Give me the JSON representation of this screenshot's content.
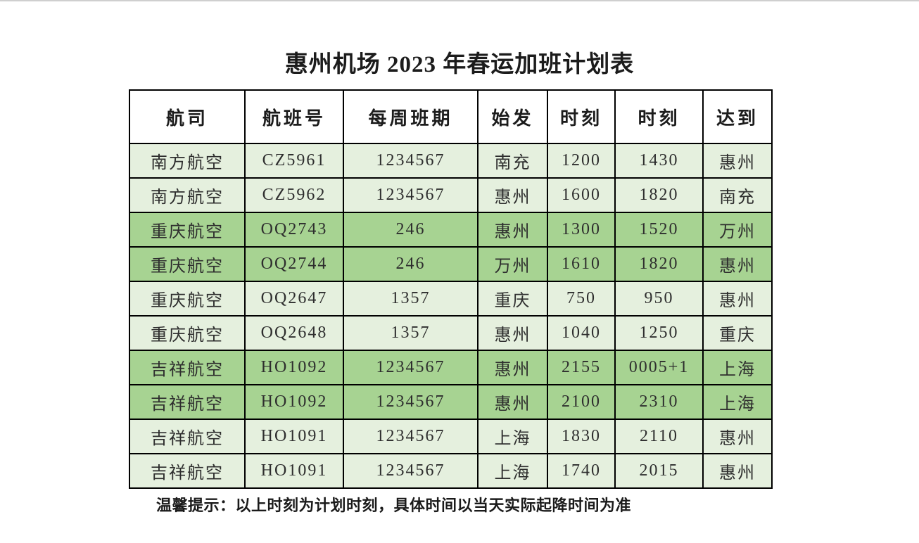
{
  "page": {
    "title": "惠州机场 2023 年春运加班计划表",
    "footer_note": "温馨提示：以上时刻为计划时刻，具体时间以当天实际起降时间为准"
  },
  "table": {
    "headers": [
      "航司",
      "航班号",
      "每周班期",
      "始发",
      "时刻",
      "时刻",
      "达到"
    ],
    "rows": [
      {
        "shade": "light",
        "cells": [
          "南方航空",
          "CZ5961",
          "1234567",
          "南充",
          "1200",
          "1430",
          "惠州"
        ]
      },
      {
        "shade": "light",
        "cells": [
          "南方航空",
          "CZ5962",
          "1234567",
          "惠州",
          "1600",
          "1820",
          "南充"
        ]
      },
      {
        "shade": "dark",
        "cells": [
          "重庆航空",
          "OQ2743",
          "246",
          "惠州",
          "1300",
          "1520",
          "万州"
        ]
      },
      {
        "shade": "dark",
        "cells": [
          "重庆航空",
          "OQ2744",
          "246",
          "万州",
          "1610",
          "1820",
          "惠州"
        ]
      },
      {
        "shade": "light",
        "cells": [
          "重庆航空",
          "OQ2647",
          "1357",
          "重庆",
          "750",
          "950",
          "惠州"
        ]
      },
      {
        "shade": "light",
        "cells": [
          "重庆航空",
          "OQ2648",
          "1357",
          "惠州",
          "1040",
          "1250",
          "重庆"
        ]
      },
      {
        "shade": "dark",
        "cells": [
          "吉祥航空",
          "HO1092",
          "1234567",
          "惠州",
          "2155",
          "0005+1",
          "上海"
        ]
      },
      {
        "shade": "dark",
        "cells": [
          "吉祥航空",
          "HO1092",
          "1234567",
          "惠州",
          "2100",
          "2310",
          "上海"
        ]
      },
      {
        "shade": "light",
        "cells": [
          "吉祥航空",
          "HO1091",
          "1234567",
          "上海",
          "1830",
          "2110",
          "惠州"
        ]
      },
      {
        "shade": "light",
        "cells": [
          "吉祥航空",
          "HO1091",
          "1234567",
          "上海",
          "1740",
          "2015",
          "惠州"
        ]
      }
    ]
  },
  "colors": {
    "row_light": "#e5f0de",
    "row_dark": "#a7d392",
    "header_bg": "#ffffff",
    "border": "#000000",
    "text": "#2e2e2e",
    "page_bg": "#ffffff"
  }
}
